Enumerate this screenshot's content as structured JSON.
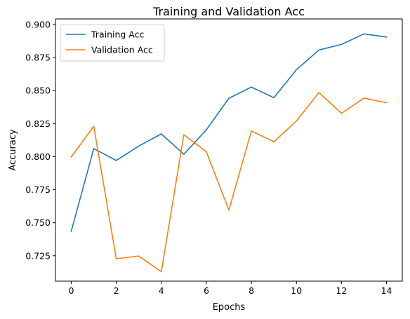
{
  "chart_data": {
    "type": "line",
    "title": "Training and Validation Acc",
    "xlabel": "Epochs",
    "ylabel": "Accuracy",
    "x": [
      0,
      1,
      2,
      3,
      4,
      5,
      6,
      7,
      8,
      9,
      10,
      11,
      12,
      13,
      14
    ],
    "xlim": [
      -0.7,
      14.7
    ],
    "ylim": [
      0.7058,
      0.9042
    ],
    "xticks": [
      0,
      2,
      4,
      6,
      8,
      10,
      12,
      14
    ],
    "yticks": [
      0.725,
      0.75,
      0.775,
      0.8,
      0.825,
      0.85,
      0.875,
      0.9
    ],
    "xtick_labels": [
      "0",
      "2",
      "4",
      "6",
      "8",
      "10",
      "12",
      "14"
    ],
    "ytick_labels": [
      "0.725",
      "0.750",
      "0.775",
      "0.800",
      "0.825",
      "0.850",
      "0.875",
      "0.900"
    ],
    "grid": false,
    "legend_position": "upper-left",
    "series": [
      {
        "name": "Training Acc",
        "color": "#1f77b4",
        "values": [
          0.7435,
          0.8061,
          0.7971,
          0.808,
          0.8172,
          0.8018,
          0.8203,
          0.8442,
          0.8526,
          0.8446,
          0.8658,
          0.8807,
          0.8849,
          0.8929,
          0.8905
        ]
      },
      {
        "name": "Validation Acc",
        "color": "#ff7f0e",
        "values": [
          0.7997,
          0.823,
          0.7227,
          0.7248,
          0.7129,
          0.8166,
          0.8037,
          0.7595,
          0.8194,
          0.8113,
          0.827,
          0.8485,
          0.8328,
          0.8443,
          0.8408
        ]
      }
    ]
  }
}
